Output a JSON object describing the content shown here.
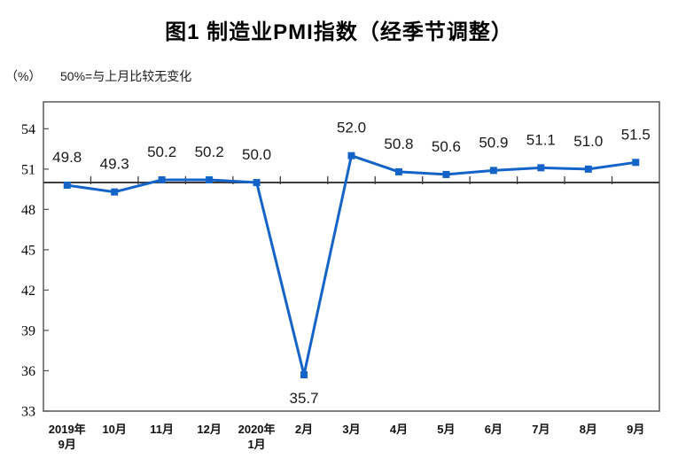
{
  "figure": {
    "title": "图1 制造业PMI指数（经季节调整）",
    "unit_label": "（%）",
    "reference_note": "50%=与上月比较无变化"
  },
  "colors": {
    "line": "#1464c8",
    "marker": "#1464c8",
    "plot_border": "#595959",
    "reference_line": "#3d3d3d",
    "tick": "#595959",
    "data_label": "#1a1a1a"
  },
  "chart_data": {
    "type": "line",
    "title": "图1 制造业PMI指数（经季节调整）",
    "ylabel": "（%）",
    "note": "50%=与上月比较无变化",
    "categories": [
      [
        "2019年",
        "9月"
      ],
      [
        "10月"
      ],
      [
        "11月"
      ],
      [
        "12月"
      ],
      [
        "2020年",
        "1月"
      ],
      [
        "2月"
      ],
      [
        "3月"
      ],
      [
        "4月"
      ],
      [
        "5月"
      ],
      [
        "6月"
      ],
      [
        "7月"
      ],
      [
        "8月"
      ],
      [
        "9月"
      ]
    ],
    "values": [
      49.8,
      49.3,
      50.2,
      50.2,
      50.0,
      35.7,
      52.0,
      50.8,
      50.6,
      50.9,
      51.1,
      51.0,
      51.5
    ],
    "data_labels": [
      "49.8",
      "49.3",
      "50.2",
      "50.2",
      "50.0",
      "35.7",
      "52.0",
      "50.8",
      "50.6",
      "50.9",
      "51.1",
      "51.0",
      "51.5"
    ],
    "ylim": [
      33,
      56
    ],
    "yticks": [
      33,
      36,
      39,
      42,
      45,
      48,
      51,
      54
    ],
    "reference_line": 50,
    "grid": false,
    "legend": "none",
    "marker": "square"
  }
}
